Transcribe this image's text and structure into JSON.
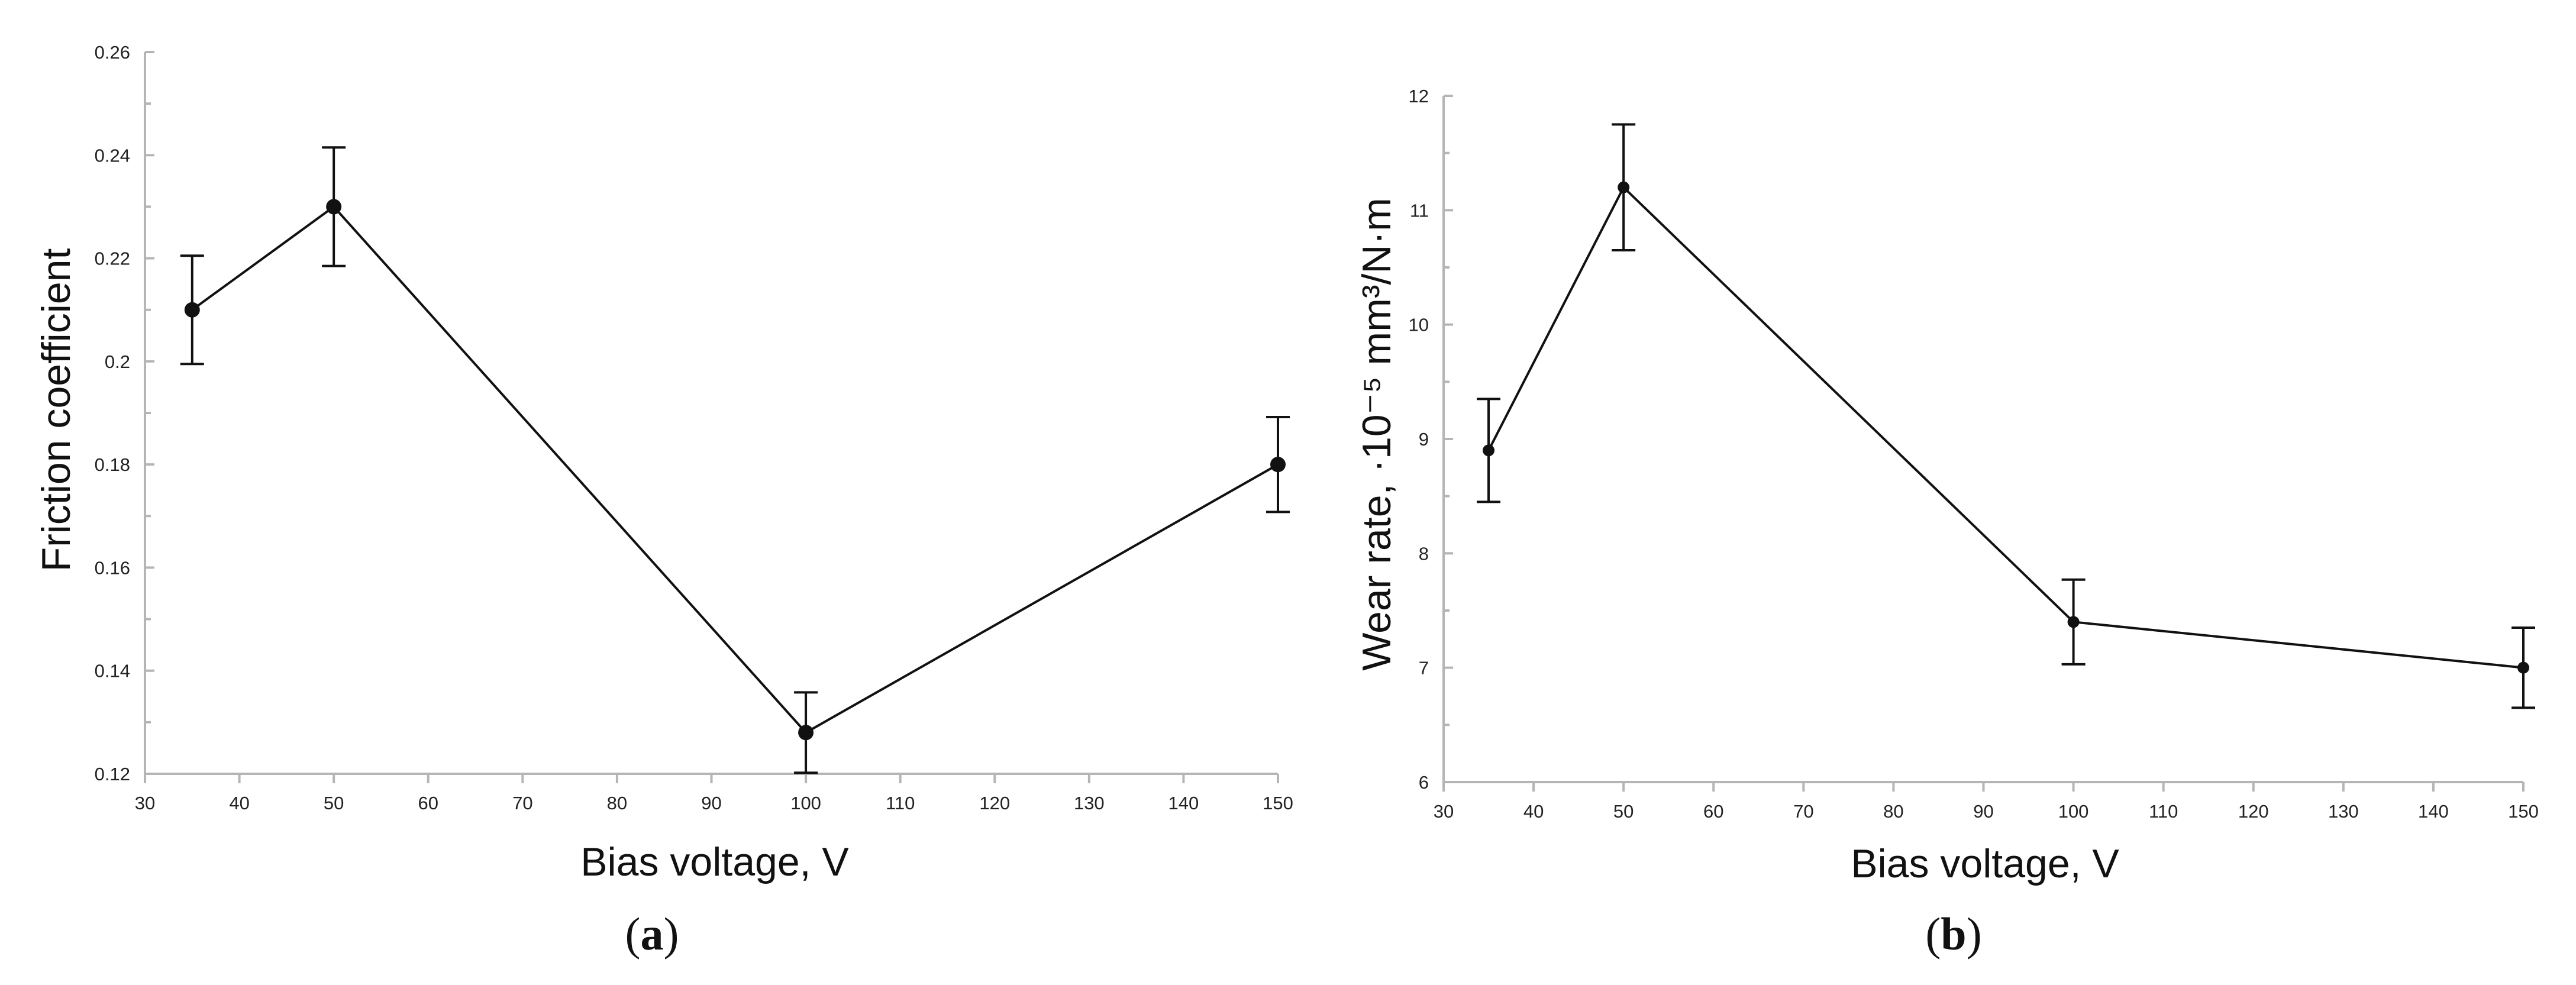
{
  "chart_data": [
    {
      "type": "line",
      "panel_label": "a",
      "title": "",
      "xlabel": "Bias voltage, V",
      "ylabel": "Friction coefficient",
      "xlim": [
        30,
        150
      ],
      "ylim": [
        0.12,
        0.26
      ],
      "x_ticks": [
        30,
        40,
        50,
        60,
        70,
        80,
        90,
        100,
        110,
        120,
        130,
        140,
        150
      ],
      "y_ticks": [
        0.12,
        0.14,
        0.16,
        0.18,
        0.2,
        0.22,
        0.24,
        0.26
      ],
      "y_tick_labels": [
        "0.12",
        "0.14",
        "0.16",
        "0.18",
        "0.2",
        "0.22",
        "0.24",
        "0.26"
      ],
      "grid": false,
      "series": [
        {
          "name": "Friction coefficient",
          "x": [
            35,
            50,
            100,
            150
          ],
          "y": [
            0.21,
            0.23,
            0.128,
            0.18
          ],
          "error": [
            0.0105,
            0.0115,
            0.0078,
            0.0092
          ]
        }
      ]
    },
    {
      "type": "line",
      "panel_label": "b",
      "title": "",
      "xlabel": "Bias voltage, V",
      "ylabel": "Wear rate, ·10⁻⁵ mm³/N·m",
      "xlim": [
        30,
        150
      ],
      "ylim": [
        6,
        12
      ],
      "x_ticks": [
        30,
        40,
        50,
        60,
        70,
        80,
        90,
        100,
        110,
        120,
        130,
        140,
        150
      ],
      "y_ticks": [
        6,
        7,
        8,
        9,
        10,
        11,
        12
      ],
      "y_tick_labels": [
        "6",
        "7",
        "8",
        "9",
        "10",
        "11",
        "12"
      ],
      "grid": false,
      "series": [
        {
          "name": "Wear rate",
          "x": [
            35,
            50,
            100,
            150
          ],
          "y": [
            8.9,
            11.2,
            7.4,
            7.0
          ],
          "error": [
            0.45,
            0.55,
            0.37,
            0.35
          ]
        }
      ]
    }
  ]
}
